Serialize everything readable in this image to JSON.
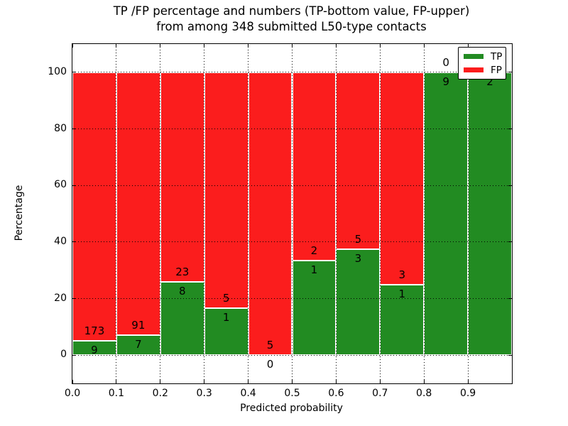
{
  "figure": {
    "title_line1": "TP /FP percentage and numbers (TP-bottom value, FP-upper)",
    "title_line2": "from among 348 submitted L50-type contacts",
    "total_contacts": 348
  },
  "colors": {
    "tp_green": "#228b22",
    "fp_red": "#fb1d1d",
    "grid": "#000000",
    "background": "#ffffff",
    "text": "#000000"
  },
  "chart_data": {
    "type": "bar",
    "stacked": true,
    "normalized_to_percent": true,
    "title": "TP /FP percentage and numbers (TP-bottom value, FP-upper) from among 348 submitted L50-type contacts",
    "xlabel": "Predicted probability",
    "ylabel": "Percentage",
    "xlim": [
      0.0,
      1.0
    ],
    "ylim": [
      -10,
      110
    ],
    "xticks": [
      "0.0",
      "0.1",
      "0.2",
      "0.3",
      "0.4",
      "0.5",
      "0.6",
      "0.7",
      "0.8",
      "0.9"
    ],
    "xtick_values": [
      0.0,
      0.1,
      0.2,
      0.3,
      0.4,
      0.5,
      0.6,
      0.7,
      0.8,
      0.9
    ],
    "yticks": [
      0,
      20,
      40,
      60,
      80,
      100
    ],
    "grid": "dotted black, both axes, drawn over bars",
    "bar_width": 0.1,
    "bar_edge_color": "#ffffff",
    "annotation_rule": "TP count below segment boundary, FP count above segment boundary",
    "legend": {
      "position": "upper right",
      "entries": [
        {
          "label": "TP",
          "color": "#228b22"
        },
        {
          "label": "FP",
          "color": "#fb1d1d"
        }
      ]
    },
    "series_note": "green bar height = tp/(tp+fp)*100, red fills remainder to 100%",
    "bins": [
      {
        "range": [
          0.0,
          0.1
        ],
        "tp": 9,
        "fp": 173
      },
      {
        "range": [
          0.1,
          0.2
        ],
        "tp": 7,
        "fp": 91
      },
      {
        "range": [
          0.2,
          0.3
        ],
        "tp": 8,
        "fp": 23
      },
      {
        "range": [
          0.3,
          0.4
        ],
        "tp": 1,
        "fp": 5
      },
      {
        "range": [
          0.4,
          0.5
        ],
        "tp": 0,
        "fp": 5
      },
      {
        "range": [
          0.5,
          0.6
        ],
        "tp": 1,
        "fp": 2
      },
      {
        "range": [
          0.6,
          0.7
        ],
        "tp": 3,
        "fp": 5
      },
      {
        "range": [
          0.7,
          0.8
        ],
        "tp": 1,
        "fp": 3
      },
      {
        "range": [
          0.8,
          0.9
        ],
        "tp": 9,
        "fp": 0
      },
      {
        "range": [
          0.9,
          1.0
        ],
        "tp": 2,
        "fp": 0
      }
    ]
  }
}
